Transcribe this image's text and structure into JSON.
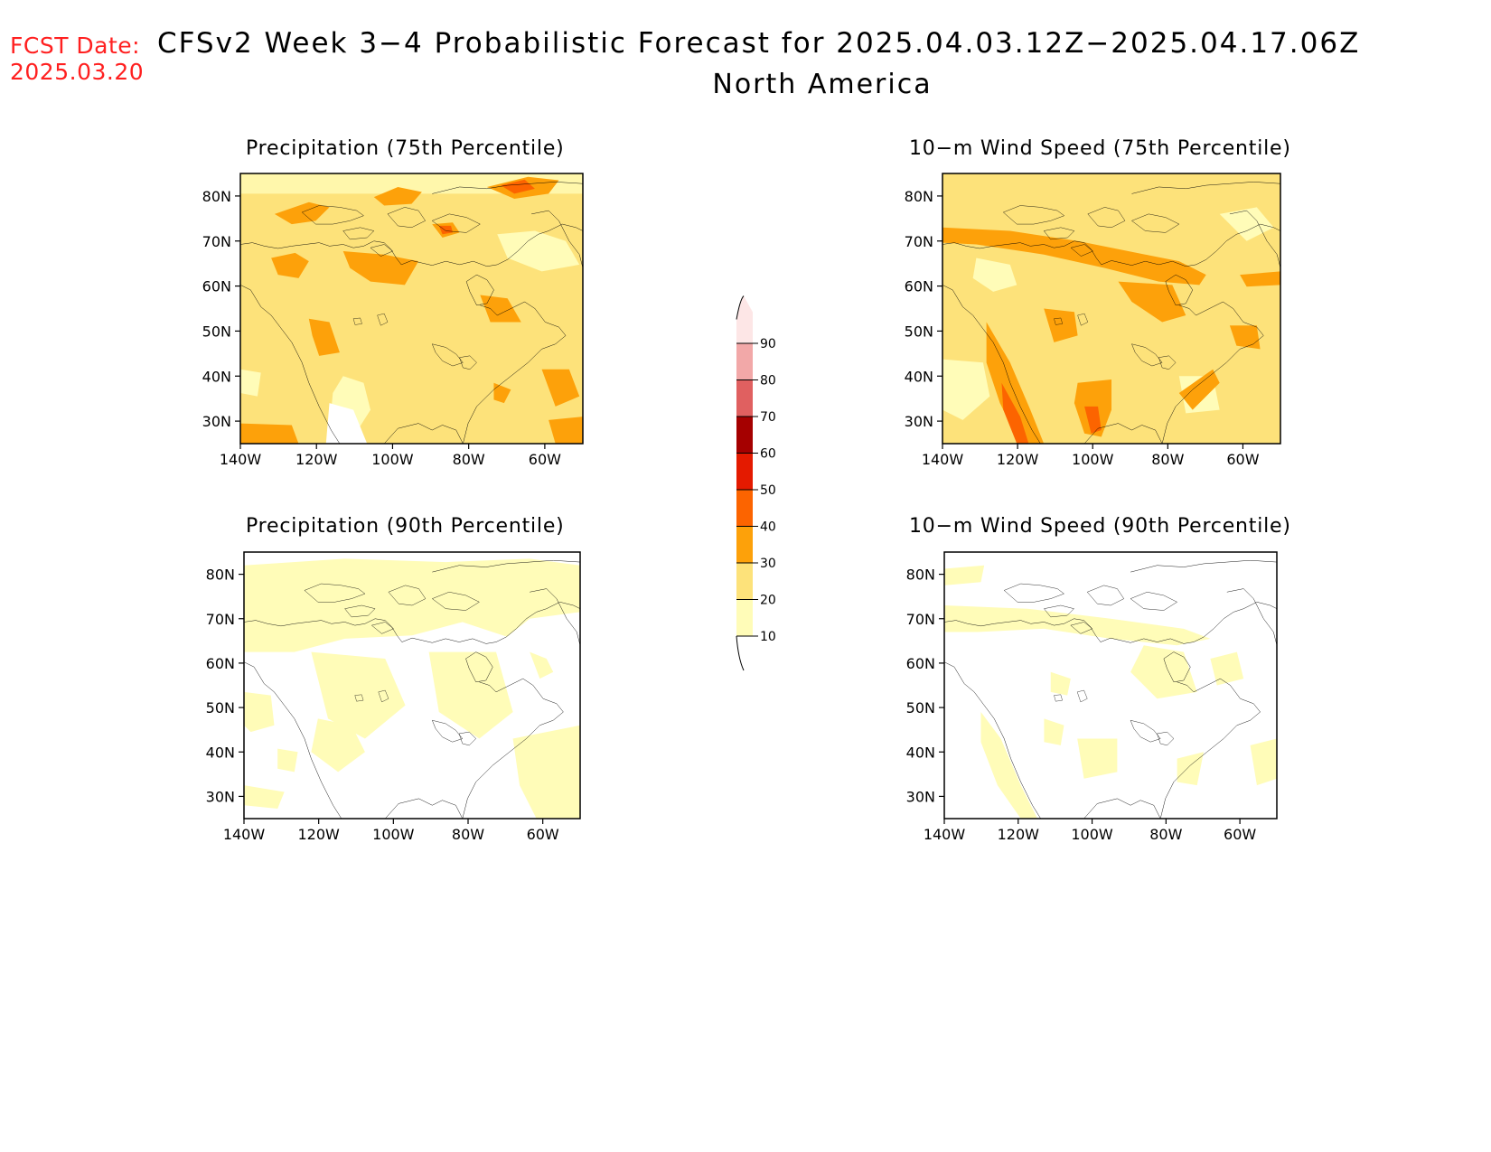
{
  "header": {
    "fcst_label": "FCST Date:",
    "fcst_date": "2025.03.20",
    "title": "CFSv2 Week 3−4 Probabilistic Forecast for 2025.04.03.12Z−2025.04.17.06Z",
    "region": "North America"
  },
  "panels": [
    {
      "title": "Precipitation (75th Percentile)"
    },
    {
      "title": "10−m Wind Speed (75th Percentile)"
    },
    {
      "title": "Precipitation (90th Percentile)"
    },
    {
      "title": "10−m Wind Speed (90th Percentile)"
    }
  ],
  "axes": {
    "lat_labels": [
      "30N",
      "40N",
      "50N",
      "60N",
      "70N",
      "80N"
    ],
    "lat_values": [
      30,
      40,
      50,
      60,
      70,
      80
    ],
    "lon_labels": [
      "140W",
      "120W",
      "100W",
      "80W",
      "60W"
    ],
    "lon_values": [
      -140,
      -120,
      -100,
      -80,
      -60
    ],
    "lat_range": [
      25,
      85
    ],
    "lon_range": [
      -140,
      -50
    ]
  },
  "colorbar": {
    "labels": [
      "10",
      "20",
      "30",
      "40",
      "50",
      "60",
      "70",
      "80",
      "90"
    ],
    "colors": [
      "#fffcb8",
      "#fde27a",
      "#fda10a",
      "#fc6400",
      "#e41a00",
      "#a50000",
      "#e06060",
      "#f2a8a8",
      "#fde6e6"
    ]
  }
}
